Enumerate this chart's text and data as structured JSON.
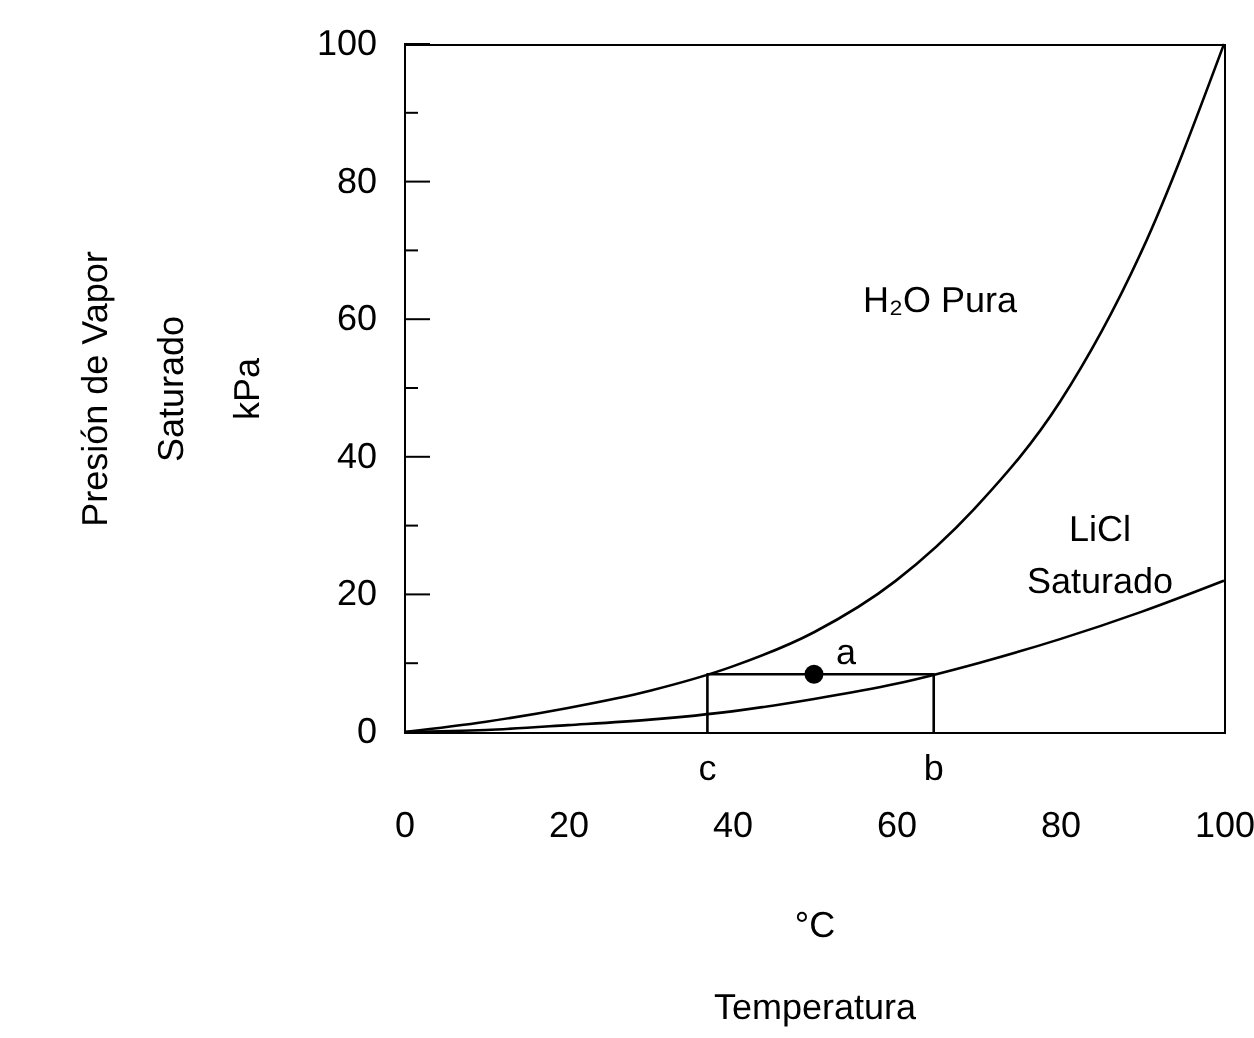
{
  "chart_data": {
    "type": "line",
    "xlabel": "°C\nTemperatura",
    "ylabel": "Presión de Vapor\nSaturado\nkPa",
    "x": [
      0,
      10,
      20,
      30,
      40,
      50,
      60,
      70,
      80,
      90,
      100
    ],
    "series": [
      {
        "name": "H₂O Pura",
        "color": "#000000",
        "values": [
          0,
          1.5,
          3.5,
          6,
          9.5,
          14.5,
          22,
          33,
          48,
          70,
          100
        ]
      },
      {
        "name": "LiCl\nSaturado",
        "color": "#000000",
        "values": [
          0,
          0.3,
          1,
          1.8,
          3,
          4.8,
          7,
          10,
          13.5,
          17.5,
          22
        ]
      },
      {
        "type": "line",
        "color": "#000000",
        "x": [
          37,
          37,
          64.6,
          64.6
        ],
        "values": [
          0,
          8.4,
          8.4,
          0
        ]
      },
      {
        "name": "a",
        "type": "scatter",
        "color": "#000000",
        "x": [
          50
        ],
        "values": [
          8.4
        ],
        "marker": "circle"
      }
    ],
    "xlim": [
      0,
      100
    ],
    "ylim": [
      0,
      100
    ],
    "xticks": [
      0,
      20,
      40,
      60,
      80,
      100
    ],
    "yticks": [
      0,
      {
        "value": 10,
        "label": null
      },
      20,
      {
        "value": 30,
        "label": null
      },
      40,
      {
        "value": 50,
        "label": null
      },
      60,
      {
        "value": 70,
        "label": null
      },
      80,
      {
        "value": 90,
        "label": null
      },
      100
    ],
    "annotations": [
      "c",
      "b"
    ],
    "grid": false,
    "marker": "none"
  }
}
